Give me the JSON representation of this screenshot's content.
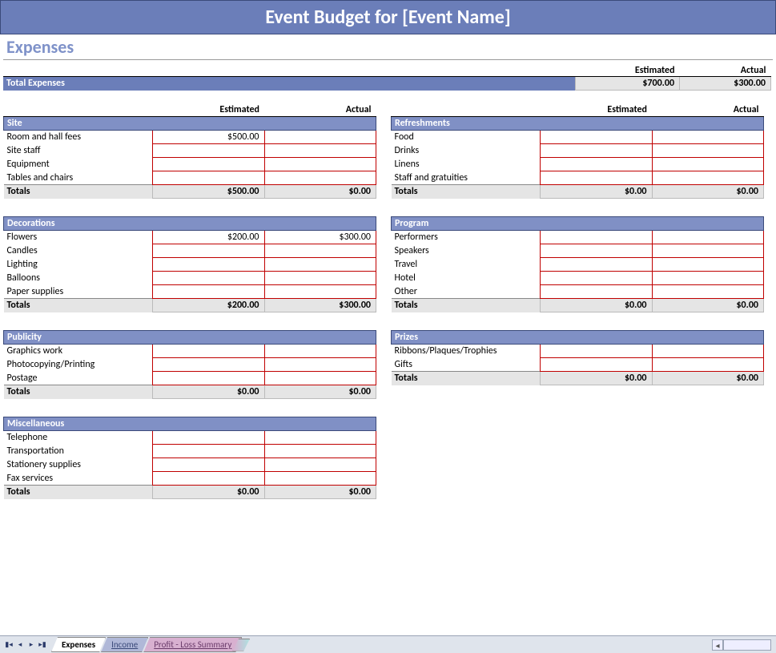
{
  "colors": {
    "header_bg": "#6b7eb9",
    "header_text": "#ffffff",
    "section_title": "#7f92c9",
    "cat_head_bg": "#8090c5",
    "cell_border": "#c00000",
    "totals_bg": "#e5e5e5"
  },
  "title": "Event Budget for [Event Name]",
  "section": "Expenses",
  "headers": {
    "estimated": "Estimated",
    "actual": "Actual",
    "totals": "Totals"
  },
  "total_expenses": {
    "label": "Total Expenses",
    "estimated": "$700.00",
    "actual": "$300.00"
  },
  "left": [
    {
      "name": "Site",
      "rows": [
        {
          "label": "Room and hall fees",
          "estimated": "$500.00",
          "actual": ""
        },
        {
          "label": "Site staff",
          "estimated": "",
          "actual": ""
        },
        {
          "label": "Equipment",
          "estimated": "",
          "actual": ""
        },
        {
          "label": "Tables and chairs",
          "estimated": "",
          "actual": ""
        }
      ],
      "totals": {
        "estimated": "$500.00",
        "actual": "$0.00"
      }
    },
    {
      "name": "Decorations",
      "rows": [
        {
          "label": "Flowers",
          "estimated": "$200.00",
          "actual": "$300.00"
        },
        {
          "label": "Candles",
          "estimated": "",
          "actual": ""
        },
        {
          "label": "Lighting",
          "estimated": "",
          "actual": ""
        },
        {
          "label": "Balloons",
          "estimated": "",
          "actual": ""
        },
        {
          "label": "Paper supplies",
          "estimated": "",
          "actual": ""
        }
      ],
      "totals": {
        "estimated": "$200.00",
        "actual": "$300.00"
      }
    },
    {
      "name": "Publicity",
      "rows": [
        {
          "label": "Graphics work",
          "estimated": "",
          "actual": ""
        },
        {
          "label": "Photocopying/Printing",
          "estimated": "",
          "actual": ""
        },
        {
          "label": "Postage",
          "estimated": "",
          "actual": ""
        }
      ],
      "totals": {
        "estimated": "$0.00",
        "actual": "$0.00"
      }
    },
    {
      "name": "Miscellaneous",
      "rows": [
        {
          "label": "Telephone",
          "estimated": "",
          "actual": ""
        },
        {
          "label": "Transportation",
          "estimated": "",
          "actual": ""
        },
        {
          "label": "Stationery supplies",
          "estimated": "",
          "actual": ""
        },
        {
          "label": "Fax services",
          "estimated": "",
          "actual": ""
        }
      ],
      "totals": {
        "estimated": "$0.00",
        "actual": "$0.00"
      }
    }
  ],
  "right": [
    {
      "name": "Refreshments",
      "rows": [
        {
          "label": "Food",
          "estimated": "",
          "actual": ""
        },
        {
          "label": "Drinks",
          "estimated": "",
          "actual": ""
        },
        {
          "label": "Linens",
          "estimated": "",
          "actual": ""
        },
        {
          "label": "Staff and gratuities",
          "estimated": "",
          "actual": ""
        }
      ],
      "totals": {
        "estimated": "$0.00",
        "actual": "$0.00"
      }
    },
    {
      "name": "Program",
      "rows": [
        {
          "label": "Performers",
          "estimated": "",
          "actual": ""
        },
        {
          "label": "Speakers",
          "estimated": "",
          "actual": ""
        },
        {
          "label": "Travel",
          "estimated": "",
          "actual": ""
        },
        {
          "label": "Hotel",
          "estimated": "",
          "actual": ""
        },
        {
          "label": "Other",
          "estimated": "",
          "actual": ""
        }
      ],
      "totals": {
        "estimated": "$0.00",
        "actual": "$0.00"
      }
    },
    {
      "name": "Prizes",
      "rows": [
        {
          "label": "Ribbons/Plaques/Trophies",
          "estimated": "",
          "actual": ""
        },
        {
          "label": "Gifts",
          "estimated": "",
          "actual": ""
        }
      ],
      "totals": {
        "estimated": "$0.00",
        "actual": "$0.00"
      }
    }
  ],
  "tabs": {
    "active": "Expenses",
    "others": [
      "Income",
      "Profit - Loss Summary"
    ]
  }
}
